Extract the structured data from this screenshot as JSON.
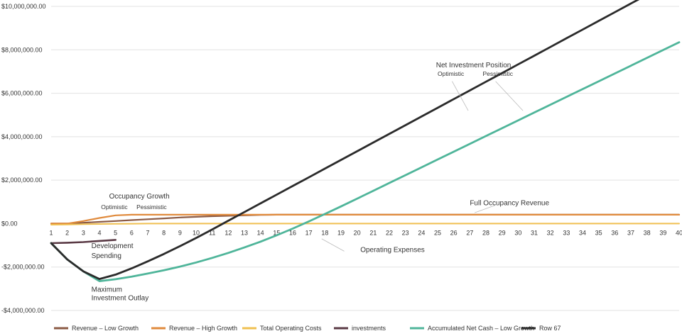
{
  "chart_data": {
    "type": "line",
    "title": "",
    "xlabel": "",
    "ylabel": "",
    "x": [
      1,
      2,
      3,
      4,
      5,
      6,
      7,
      8,
      9,
      10,
      11,
      12,
      13,
      14,
      15,
      16,
      17,
      18,
      19,
      20,
      21,
      22,
      23,
      24,
      25,
      26,
      27,
      28,
      29,
      30,
      31,
      32,
      33,
      34,
      35,
      36,
      37,
      38,
      39,
      40
    ],
    "x_tick_labels": [
      "1",
      "2",
      "3",
      "4",
      "5",
      "6",
      "7",
      "8",
      "9",
      "10",
      "11",
      "12",
      "13",
      "14",
      "15",
      "16",
      "17",
      "18",
      "19",
      "20",
      "21",
      "22",
      "23",
      "24",
      "25",
      "26",
      "27",
      "28",
      "29",
      "30",
      "31",
      "32",
      "33",
      "34",
      "35",
      "36",
      "37",
      "38",
      "39",
      "40"
    ],
    "ylim": [
      -4000000,
      10000000
    ],
    "y_ticks": [
      -4000000,
      -2000000,
      0,
      2000000,
      4000000,
      6000000,
      8000000,
      10000000
    ],
    "y_tick_labels": [
      "-$4,000,000.00",
      "-$2,000,000.00",
      "$0.00",
      "$2,000,000.00",
      "$4,000,000.00",
      "$6,000,000.00",
      "$8,000,000.00",
      "$10,000,000.00"
    ],
    "grid": "horizontal",
    "legend_position": "bottom",
    "series": [
      {
        "name": "Revenue – Low Growth",
        "color": "#8b5a44",
        "x": [
          1,
          2,
          3,
          4,
          5,
          6,
          7,
          8,
          9,
          10,
          11,
          12,
          13,
          14,
          15,
          16,
          17,
          18,
          19,
          20,
          21,
          22,
          23,
          24,
          25,
          26,
          27,
          28,
          29,
          30,
          31,
          32,
          33,
          34,
          35,
          36,
          37,
          38,
          39,
          40
        ],
        "values": [
          0,
          0,
          40000,
          80000,
          120000,
          160000,
          200000,
          240000,
          280000,
          310000,
          340000,
          360000,
          380000,
          400000,
          410000,
          410000,
          410000,
          410000,
          410000,
          410000,
          410000,
          410000,
          410000,
          410000,
          410000,
          410000,
          410000,
          410000,
          410000,
          410000,
          410000,
          410000,
          410000,
          410000,
          410000,
          410000,
          410000,
          410000,
          410000,
          410000
        ]
      },
      {
        "name": "Revenue – High Growth",
        "color": "#e08a3c",
        "x": [
          1,
          2,
          3,
          4,
          5,
          6,
          7,
          8,
          9,
          10,
          11,
          12,
          13,
          14,
          15,
          16,
          17,
          18,
          19,
          20,
          21,
          22,
          23,
          24,
          25,
          26,
          27,
          28,
          29,
          30,
          31,
          32,
          33,
          34,
          35,
          36,
          37,
          38,
          39,
          40
        ],
        "values": [
          0,
          0,
          120000,
          260000,
          380000,
          410000,
          410000,
          410000,
          410000,
          410000,
          410000,
          410000,
          410000,
          410000,
          410000,
          410000,
          410000,
          410000,
          410000,
          410000,
          410000,
          410000,
          410000,
          410000,
          410000,
          410000,
          410000,
          410000,
          410000,
          410000,
          410000,
          410000,
          410000,
          410000,
          410000,
          410000,
          410000,
          410000,
          410000,
          410000
        ]
      },
      {
        "name": "Total Operating Costs",
        "color": "#f0c051",
        "x": [
          1,
          2,
          3,
          4,
          5,
          6,
          7,
          8,
          9,
          10,
          11,
          12,
          13,
          14,
          15,
          16,
          17,
          18,
          19,
          20,
          21,
          22,
          23,
          24,
          25,
          26,
          27,
          28,
          29,
          30,
          31,
          32,
          33,
          34,
          35,
          36,
          37,
          38,
          39,
          40
        ],
        "values": [
          -50000,
          -40000,
          -30000,
          -20000,
          -10000,
          -5000,
          0,
          0,
          0,
          0,
          0,
          0,
          0,
          0,
          0,
          0,
          0,
          0,
          0,
          0,
          0,
          0,
          0,
          0,
          0,
          0,
          0,
          0,
          0,
          0,
          0,
          0,
          0,
          0,
          0,
          0,
          0,
          0,
          0,
          0
        ]
      },
      {
        "name": "investments",
        "color": "#5a3a45",
        "x": [
          1,
          2,
          3,
          4,
          5
        ],
        "values": [
          -900000,
          -880000,
          -850000,
          -800000,
          -750000
        ]
      },
      {
        "name": "Accumulated Net Cash – Low Growth",
        "color": "#4fb59a",
        "x": [
          1,
          2,
          3,
          4,
          5,
          6,
          7,
          8,
          9,
          10,
          11,
          12,
          13,
          14,
          15,
          16,
          17,
          18,
          19,
          20,
          21,
          22,
          23,
          24,
          25,
          26,
          27,
          28,
          29,
          30,
          31,
          32,
          33,
          34,
          35,
          36,
          37,
          38,
          39,
          40
        ],
        "values": [
          -900000,
          -1650000,
          -2200000,
          -2650000,
          -2560000,
          -2440000,
          -2300000,
          -2150000,
          -1980000,
          -1790000,
          -1580000,
          -1350000,
          -1100000,
          -830000,
          -540000,
          -230000,
          100000,
          440000,
          790000,
          1150000,
          1510000,
          1870000,
          2230000,
          2590000,
          2950000,
          3310000,
          3670000,
          4030000,
          4390000,
          4750000,
          5110000,
          5470000,
          5830000,
          6190000,
          6550000,
          6910000,
          7270000,
          7630000,
          7990000,
          8350000
        ]
      },
      {
        "name": "Row 67",
        "color": "#2b2b2b",
        "x": [
          1,
          2,
          3,
          4,
          5,
          6,
          7,
          8,
          9,
          10,
          11,
          12,
          13,
          14,
          15,
          16,
          17,
          18,
          19,
          20,
          21,
          22,
          23,
          24,
          25,
          26,
          27,
          28,
          29,
          30,
          31,
          32,
          33,
          34,
          35,
          36,
          37,
          38,
          39,
          40
        ],
        "values": [
          -900000,
          -1650000,
          -2200000,
          -2550000,
          -2350000,
          -2060000,
          -1740000,
          -1400000,
          -1040000,
          -660000,
          -270000,
          130000,
          530000,
          930000,
          1330000,
          1730000,
          2130000,
          2530000,
          2930000,
          3330000,
          3730000,
          4130000,
          4530000,
          4930000,
          5330000,
          5730000,
          6130000,
          6530000,
          6930000,
          7330000,
          7730000,
          8130000,
          8530000,
          8930000,
          9330000,
          9730000,
          10130000,
          10530000,
          10930000,
          11330000
        ]
      }
    ],
    "annotations": [
      {
        "text": "Occupancy Growth",
        "size": "large",
        "x": 4.6,
        "y": 1150000
      },
      {
        "text": "Optimistic",
        "size": "small",
        "x": 4.1,
        "y": 660000
      },
      {
        "text": "Pessimistic",
        "size": "small",
        "x": 6.3,
        "y": 660000
      },
      {
        "text": "Development",
        "size": "large",
        "x": 3.5,
        "y": -1130000
      },
      {
        "text": "Spending",
        "size": "large",
        "x": 3.5,
        "y": -1580000
      },
      {
        "text": "Maximum",
        "size": "large",
        "x": 3.5,
        "y": -3130000
      },
      {
        "text": "Investment Outlay",
        "size": "large",
        "x": 3.5,
        "y": -3520000
      },
      {
        "text": "Net Investment Position",
        "size": "large",
        "x": 24.9,
        "y": 7200000
      },
      {
        "text": "Optimistic",
        "size": "small",
        "x": 25.0,
        "y": 6800000
      },
      {
        "text": "Pessimistic",
        "size": "small",
        "x": 27.8,
        "y": 6800000
      },
      {
        "text": "Full Occupancy Revenue",
        "size": "large",
        "x": 27.0,
        "y": 850000
      },
      {
        "text": "Operating Expenses",
        "size": "large",
        "x": 20.2,
        "y": -1300000
      }
    ]
  }
}
